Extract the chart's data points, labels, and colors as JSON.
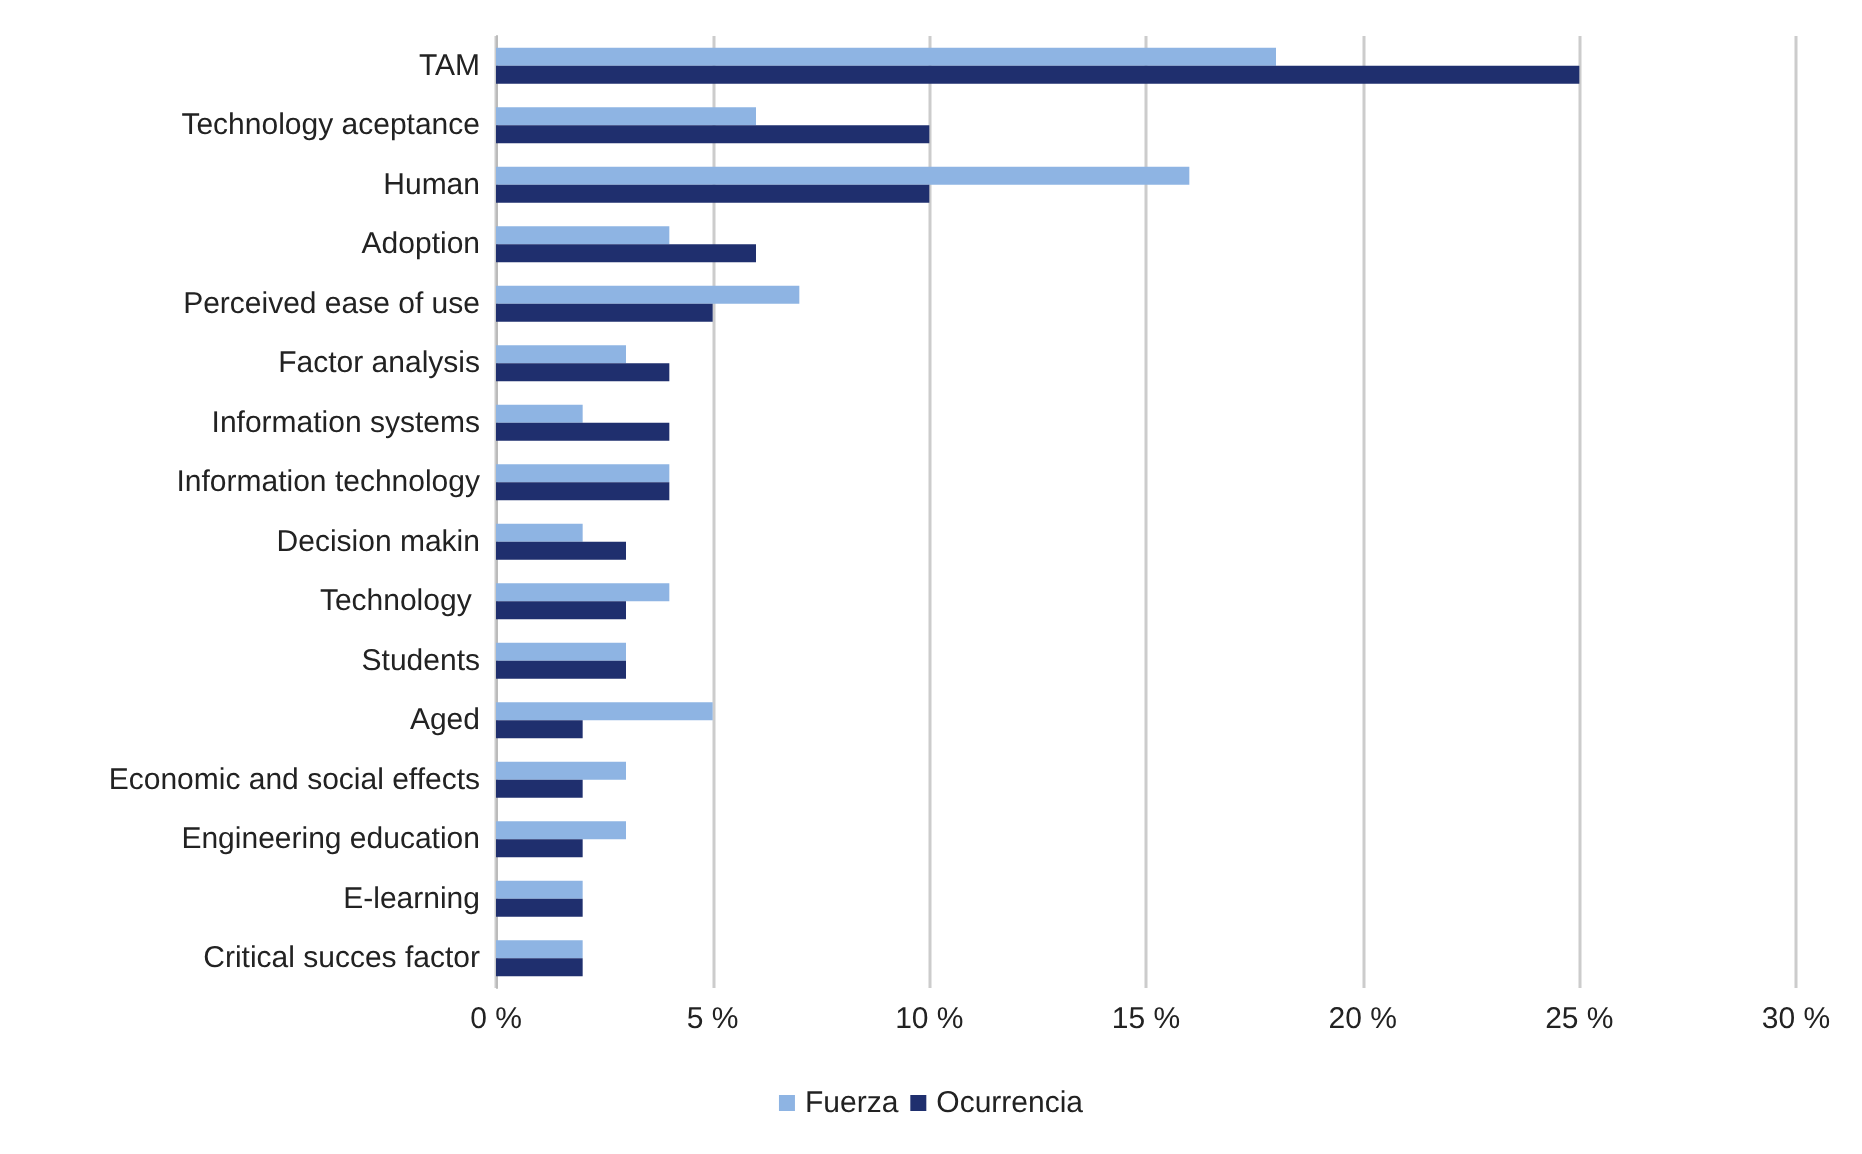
{
  "chart_data": {
    "type": "bar",
    "orientation": "horizontal",
    "categories": [
      "TAM",
      "Technology aceptance",
      "Human",
      "Adoption",
      "Perceived ease of use",
      "Factor analysis",
      "Information systems",
      "Information technology",
      "Decision makin",
      "Technology ",
      "Students",
      "Aged",
      "Economic and social effects",
      "Engineering education",
      "E-learning",
      "Critical succes factor"
    ],
    "series": [
      {
        "name": "Fuerza",
        "color": "#8eb4e3",
        "values": [
          18,
          6,
          16,
          4,
          7,
          3,
          2,
          4,
          2,
          4,
          3,
          5,
          3,
          3,
          2,
          2
        ]
      },
      {
        "name": "Ocurrencia",
        "color": "#1f2f6e",
        "values": [
          25,
          10,
          10,
          6,
          5,
          4,
          4,
          4,
          3,
          3,
          3,
          2,
          2,
          2,
          2,
          2
        ]
      }
    ],
    "xlim": [
      0,
      30
    ],
    "xticks": [
      {
        "value": 0,
        "label": "0 %"
      },
      {
        "value": 5,
        "label": "5 %"
      },
      {
        "value": 10,
        "label": "10 %"
      },
      {
        "value": 15,
        "label": "15 %"
      },
      {
        "value": 20,
        "label": "20 %"
      },
      {
        "value": 25,
        "label": "25 %"
      },
      {
        "value": 30,
        "label": "30 %"
      }
    ],
    "grid": "x",
    "legend": "bottom"
  }
}
